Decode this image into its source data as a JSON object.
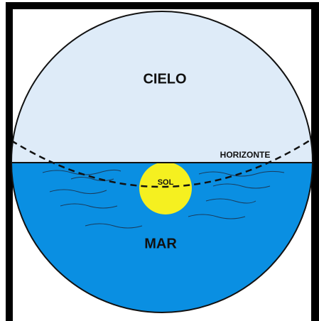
{
  "labels": {
    "sky": "CIELO",
    "horizon": "HORIZONTE",
    "sun": "SOL",
    "sea": "MAR"
  }
}
